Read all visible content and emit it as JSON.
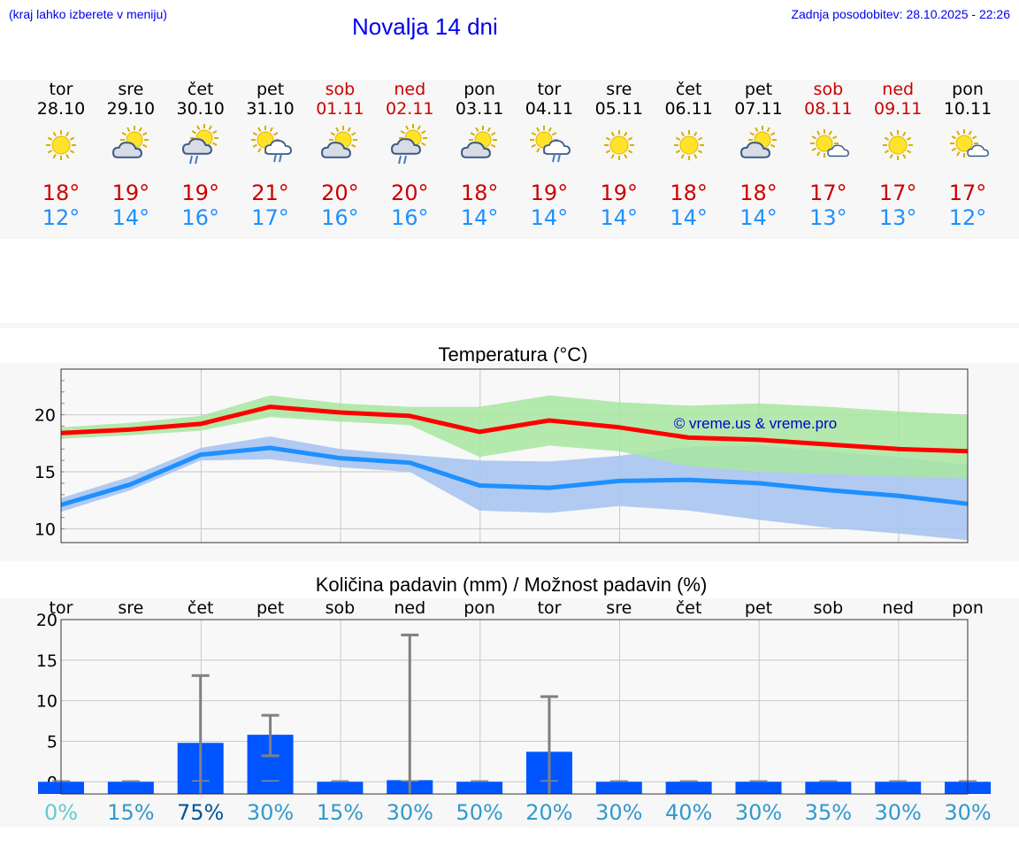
{
  "header": {
    "menu_hint": "(kraj lahko izberete v meniju)",
    "title": "Novalja 14 dni",
    "updated": "Zadnja posodobitev: 28.10.2025 - 22:26"
  },
  "days": [
    {
      "name": "tor",
      "date": "28.10",
      "icon": "sun-icon",
      "weekend": false,
      "max": "18°",
      "min": "12°"
    },
    {
      "name": "sre",
      "date": "29.10",
      "icon": "cloud-sun-icon",
      "weekend": false,
      "max": "19°",
      "min": "14°"
    },
    {
      "name": "čet",
      "date": "30.10",
      "icon": "cloud-rain-sun-icon",
      "weekend": false,
      "max": "19°",
      "min": "16°"
    },
    {
      "name": "pet",
      "date": "31.10",
      "icon": "sun-cloud-rain-icon",
      "weekend": false,
      "max": "21°",
      "min": "17°"
    },
    {
      "name": "sob",
      "date": "01.11",
      "icon": "cloud-sun-icon",
      "weekend": true,
      "max": "20°",
      "min": "16°"
    },
    {
      "name": "ned",
      "date": "02.11",
      "icon": "cloud-rain-sun-icon",
      "weekend": true,
      "max": "20°",
      "min": "16°"
    },
    {
      "name": "pon",
      "date": "03.11",
      "icon": "cloud-sun-icon",
      "weekend": false,
      "max": "18°",
      "min": "14°"
    },
    {
      "name": "tor",
      "date": "04.11",
      "icon": "sun-cloud-rain-icon",
      "weekend": false,
      "max": "19°",
      "min": "14°"
    },
    {
      "name": "sre",
      "date": "05.11",
      "icon": "sun-icon",
      "weekend": false,
      "max": "19°",
      "min": "14°"
    },
    {
      "name": "čet",
      "date": "06.11",
      "icon": "sun-icon",
      "weekend": false,
      "max": "18°",
      "min": "14°"
    },
    {
      "name": "pet",
      "date": "07.11",
      "icon": "cloud-sun-icon",
      "weekend": false,
      "max": "18°",
      "min": "14°"
    },
    {
      "name": "sob",
      "date": "08.11",
      "icon": "sun-small-cloud-icon",
      "weekend": true,
      "max": "17°",
      "min": "13°"
    },
    {
      "name": "ned",
      "date": "09.11",
      "icon": "sun-icon",
      "weekend": true,
      "max": "17°",
      "min": "13°"
    },
    {
      "name": "pon",
      "date": "10.11",
      "icon": "sun-small-cloud-icon",
      "weekend": false,
      "max": "17°",
      "min": "12°"
    }
  ],
  "colors": {
    "max": "#cc0000",
    "min": "#1e90ff",
    "link": "#0000ee",
    "max_line": "#ff0000",
    "min_line": "#1e90ff",
    "max_band": "#a8e6a0",
    "min_band": "#a9c4f0",
    "bar": "#0055ff",
    "err": "#808080"
  },
  "chart_data": [
    {
      "type": "line",
      "title": "Temperatura (°C)",
      "watermark": "© vreme.us & vreme.pro",
      "x": [
        0,
        1,
        2,
        3,
        4,
        5,
        6,
        7,
        8,
        9,
        10,
        11,
        12,
        13
      ],
      "ylim": [
        8.8,
        24
      ],
      "yticks": [
        10,
        15,
        20
      ],
      "series": [
        {
          "name": "max",
          "values": [
            18.4,
            18.7,
            19.2,
            20.7,
            20.2,
            19.9,
            18.5,
            19.5,
            18.9,
            18.0,
            17.8,
            17.4,
            17.0,
            16.8
          ],
          "band_low": [
            17.9,
            18.2,
            18.6,
            19.8,
            19.4,
            19.1,
            16.3,
            17.3,
            16.8,
            15.5,
            15.0,
            14.8,
            14.6,
            14.4
          ],
          "band_high": [
            18.9,
            19.3,
            19.9,
            21.7,
            21.0,
            20.7,
            20.7,
            21.7,
            21.1,
            20.8,
            21.0,
            20.7,
            20.3,
            20.0
          ]
        },
        {
          "name": "min",
          "values": [
            12.1,
            13.9,
            16.5,
            17.1,
            16.2,
            15.8,
            13.8,
            13.6,
            14.2,
            14.3,
            14.0,
            13.4,
            12.9,
            12.2
          ],
          "band_low": [
            11.5,
            13.4,
            16.0,
            16.1,
            15.4,
            15.0,
            11.6,
            11.4,
            12.0,
            11.6,
            10.8,
            10.1,
            9.6,
            9.0
          ],
          "band_high": [
            12.7,
            14.6,
            17.1,
            18.1,
            17.0,
            16.5,
            16.0,
            15.9,
            16.4,
            17.2,
            17.3,
            16.8,
            16.3,
            15.6
          ]
        }
      ]
    },
    {
      "type": "bar",
      "title": "Količina padavin (mm) / Možnost padavin (%)",
      "categories": [
        "tor",
        "sre",
        "čet",
        "pet",
        "sob",
        "ned",
        "pon",
        "tor",
        "sre",
        "čet",
        "pet",
        "sob",
        "ned",
        "pon"
      ],
      "values": [
        0,
        0,
        4.8,
        5.8,
        0,
        0.2,
        0,
        3.7,
        0,
        0,
        0,
        0,
        0,
        0
      ],
      "err_low": [
        0,
        0,
        0,
        3.2,
        0,
        0,
        0,
        0,
        0,
        0,
        0,
        0,
        0,
        0
      ],
      "err_high": [
        0,
        0,
        13.1,
        8.2,
        0,
        18.1,
        0,
        10.5,
        0,
        0,
        0,
        0,
        0,
        0
      ],
      "probability": [
        "0%",
        "15%",
        "75%",
        "30%",
        "15%",
        "30%",
        "50%",
        "20%",
        "30%",
        "40%",
        "30%",
        "35%",
        "30%",
        "30%"
      ],
      "prob_colors": [
        "#66cccc",
        "#3399cc",
        "#005599",
        "#3399cc",
        "#3399cc",
        "#3399cc",
        "#3399cc",
        "#3399cc",
        "#3399cc",
        "#3399cc",
        "#3399cc",
        "#3399cc",
        "#3399cc",
        "#3399cc"
      ],
      "ylim": [
        -1.5,
        20
      ],
      "yticks": [
        0,
        5,
        10,
        15,
        20
      ]
    }
  ]
}
